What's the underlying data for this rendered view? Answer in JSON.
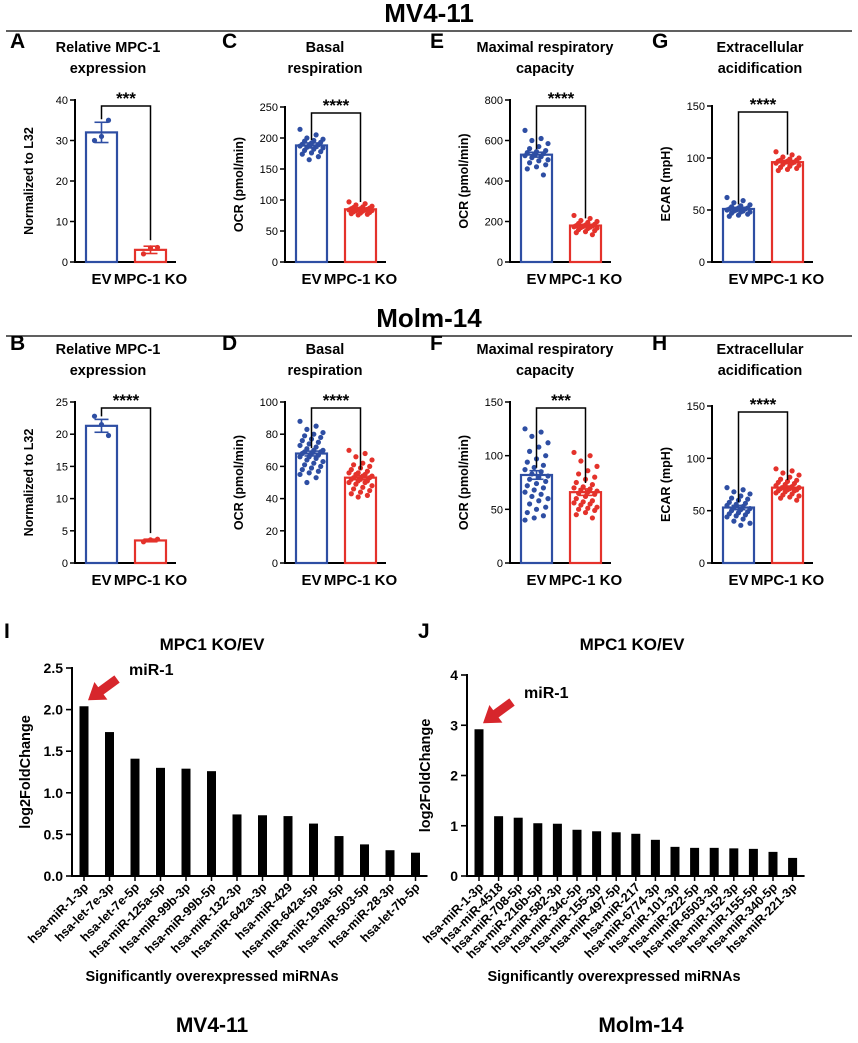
{
  "section_headers": [
    "MV4-11",
    "Molm-14"
  ],
  "bottom_labels": [
    "MV4-11",
    "Molm-14"
  ],
  "colors": {
    "ev": "#2e4ea3",
    "ko": "#e4322b",
    "black": "#000000",
    "arrow": "#d7262c"
  },
  "chart_data": [
    {
      "letter": "A",
      "type": "bar",
      "title": [
        "Relative MPC-1",
        "expression"
      ],
      "ylabel": "Normalized to L32",
      "ylim": [
        0,
        40
      ],
      "yticks": [
        0,
        10,
        20,
        30,
        40
      ],
      "categories": [
        "EV",
        "MPC-1 KO"
      ],
      "values": [
        32.0,
        3.0
      ],
      "errors": [
        2.5,
        0.9
      ],
      "points": [
        [
          30.0,
          31.0,
          35.0
        ],
        [
          2.0,
          3.5,
          3.6
        ]
      ],
      "significance": "***"
    },
    {
      "letter": "C",
      "type": "bar",
      "title": [
        "Basal",
        "respiration"
      ],
      "ylabel": "OCR (pmol/min)",
      "ylim": [
        0,
        250
      ],
      "yticks": [
        0,
        50,
        100,
        150,
        200,
        250
      ],
      "categories": [
        "EV",
        "MPC-1 KO"
      ],
      "values": [
        188,
        85
      ],
      "errors": [
        4,
        2
      ],
      "points": [
        [
          214,
          205,
          200,
          198,
          196,
          195,
          193,
          192,
          190,
          189,
          188,
          187,
          186,
          185,
          184,
          182,
          180,
          178,
          176,
          174,
          170,
          165
        ],
        [
          97,
          94,
          92,
          90,
          89,
          88,
          87,
          86,
          86,
          85,
          85,
          84,
          84,
          83,
          83,
          82,
          81,
          80,
          79,
          78,
          77,
          76
        ]
      ],
      "significance": "****"
    },
    {
      "letter": "E",
      "type": "bar",
      "title": [
        "Maximal respiratory",
        "capacity"
      ],
      "ylabel": "OCR (pmol/min)",
      "ylim": [
        0,
        800
      ],
      "yticks": [
        0,
        200,
        400,
        600,
        800
      ],
      "categories": [
        "EV",
        "MPC-1 KO"
      ],
      "values": [
        530,
        180
      ],
      "errors": [
        12,
        6
      ],
      "points": [
        [
          650,
          610,
          600,
          585,
          570,
          560,
          550,
          545,
          540,
          535,
          530,
          525,
          520,
          515,
          505,
          500,
          490,
          480,
          470,
          460,
          430
        ],
        [
          230,
          215,
          205,
          200,
          195,
          190,
          186,
          183,
          180,
          178,
          176,
          174,
          172,
          170,
          168,
          165,
          160,
          155,
          150,
          145,
          135
        ]
      ],
      "significance": "****"
    },
    {
      "letter": "G",
      "type": "bar",
      "title": [
        "Extracellular",
        "acidification"
      ],
      "ylabel": "ECAR (mpH)",
      "ylim": [
        0,
        150
      ],
      "yticks": [
        0,
        50,
        100,
        150
      ],
      "categories": [
        "EV",
        "MPC-1 KO"
      ],
      "values": [
        51,
        96
      ],
      "errors": [
        1.5,
        1.5
      ],
      "points": [
        [
          62,
          59,
          57,
          55,
          54,
          53,
          52,
          52,
          51,
          51,
          50,
          50,
          49,
          49,
          48,
          48,
          47,
          46,
          45,
          44
        ],
        [
          106,
          103,
          101,
          100,
          99,
          98,
          98,
          97,
          97,
          96,
          96,
          95,
          95,
          94,
          93,
          92,
          91,
          90,
          89,
          88
        ]
      ],
      "significance": "****"
    },
    {
      "letter": "B",
      "type": "bar",
      "title": [
        "Relative MPC-1",
        "expression"
      ],
      "ylabel": "Normalized to L32",
      "ylim": [
        0,
        25
      ],
      "yticks": [
        0,
        5,
        10,
        15,
        20,
        25
      ],
      "categories": [
        "EV",
        "MPC-1 KO"
      ],
      "values": [
        21.3,
        3.5
      ],
      "errors": [
        1.0,
        0.2
      ],
      "points": [
        [
          22.8,
          21.5,
          19.8
        ],
        [
          3.3,
          3.6,
          3.7
        ]
      ],
      "significance": "****"
    },
    {
      "letter": "D",
      "type": "bar",
      "title": [
        "Basal",
        "respiration"
      ],
      "ylabel": "OCR (pmol/min)",
      "ylim": [
        0,
        100
      ],
      "yticks": [
        0,
        20,
        40,
        60,
        80,
        100
      ],
      "categories": [
        "EV",
        "MPC-1 KO"
      ],
      "values": [
        68,
        53
      ],
      "errors": [
        1.5,
        1.2
      ],
      "points": [
        [
          88,
          85,
          83,
          81,
          80,
          79,
          78,
          77,
          76,
          75,
          74,
          73,
          72,
          71,
          70,
          70,
          69,
          69,
          68,
          68,
          67,
          66,
          66,
          65,
          64,
          63,
          62,
          61,
          60,
          59,
          58,
          57,
          56,
          55,
          53,
          50
        ],
        [
          70,
          68,
          66,
          64,
          62,
          61,
          60,
          59,
          58,
          57,
          56,
          56,
          55,
          55,
          54,
          54,
          53,
          53,
          52,
          52,
          51,
          51,
          50,
          50,
          49,
          48,
          47,
          46,
          45,
          44,
          43,
          42,
          41
        ]
      ],
      "significance": "****"
    },
    {
      "letter": "F",
      "type": "bar",
      "title": [
        "Maximal respiratory",
        "capacity"
      ],
      "ylabel": "OCR (pmol/min)",
      "ylim": [
        0,
        150
      ],
      "yticks": [
        0,
        50,
        100,
        150
      ],
      "categories": [
        "EV",
        "MPC-1 KO"
      ],
      "values": [
        82,
        66
      ],
      "errors": [
        4,
        3
      ],
      "points": [
        [
          125,
          122,
          118,
          112,
          108,
          104,
          100,
          97,
          94,
          91,
          89,
          87,
          85,
          83,
          81,
          80,
          78,
          76,
          74,
          72,
          70,
          68,
          66,
          64,
          62,
          60,
          58,
          55,
          52,
          50,
          47,
          44,
          42,
          40
        ],
        [
          103,
          100,
          95,
          90,
          86,
          83,
          80,
          78,
          75,
          73,
          71,
          70,
          69,
          68,
          67,
          66,
          65,
          64,
          62,
          60,
          58,
          57,
          56,
          55,
          54,
          52,
          51,
          50,
          49,
          47,
          45,
          42
        ]
      ],
      "significance": "***"
    },
    {
      "letter": "H",
      "type": "bar",
      "title": [
        "Extracellular",
        "acidification"
      ],
      "ylabel": "ECAR (mpH)",
      "ylim": [
        0,
        150
      ],
      "yticks": [
        0,
        50,
        100,
        150
      ],
      "categories": [
        "EV",
        "MPC-1 KO"
      ],
      "values": [
        53,
        72
      ],
      "errors": [
        2,
        1.5
      ],
      "points": [
        [
          72,
          70,
          68,
          66,
          64,
          62,
          61,
          60,
          58,
          57,
          56,
          55,
          54,
          53,
          52,
          51,
          50,
          49,
          48,
          47,
          46,
          45,
          44,
          42,
          40,
          38,
          36
        ],
        [
          90,
          88,
          86,
          84,
          82,
          80,
          79,
          78,
          77,
          76,
          75,
          74,
          73,
          72,
          72,
          71,
          71,
          70,
          70,
          69,
          69,
          68,
          67,
          66,
          65,
          64,
          63,
          62,
          60
        ]
      ],
      "significance": "****"
    },
    {
      "letter": "I",
      "type": "bar",
      "title": [
        "MPC1 KO/EV"
      ],
      "xlabel": "Significantly overexpressed miRNAs",
      "ylabel": "log2FoldChange",
      "ylim": [
        0,
        2.5
      ],
      "yticks": [
        "0.0",
        "0.5",
        "1.0",
        "1.5",
        "2.0",
        "2.5"
      ],
      "categories": [
        "hsa-miR-1-3p",
        "hsa-let-7e-3p",
        "hsa-let-7e-5p",
        "hsa-miR-125a-5p",
        "hsa-miR-99b-3p",
        "hsa-miR-99b-5p",
        "hsa-miR-132-3p",
        "hsa-miR-642a-3p",
        "hsa-miR-429",
        "hsa-miR-642a-5p",
        "hsa-miR-193a-5p",
        "hsa-miR-503-5p",
        "hsa-miR-28-3p",
        "hsa-let-7b-5p"
      ],
      "values": [
        2.04,
        1.73,
        1.41,
        1.3,
        1.29,
        1.26,
        0.74,
        0.73,
        0.72,
        0.63,
        0.48,
        0.38,
        0.31,
        0.28
      ],
      "annotation": "miR-1"
    },
    {
      "letter": "J",
      "type": "bar",
      "title": [
        "MPC1 KO/EV"
      ],
      "xlabel": "Significantly overexpressed miRNAs",
      "ylabel": "log2FoldChange",
      "ylim": [
        0,
        4
      ],
      "yticks": [
        "0",
        "1",
        "2",
        "3",
        "4"
      ],
      "categories": [
        "hsa-miR-1-3p",
        "hsa-miR-4518",
        "hsa-miR-708-5p",
        "hsa-miR-216b-5p",
        "hsa-miR-582-3p",
        "hsa-miR-34c-5p",
        "hsa-miR-155-3p",
        "hsa-miR-497-5p",
        "hsa-miR-217",
        "hsa-miR-6774-3p",
        "hsa-miR-101-3p",
        "hsa-miR-222-5p",
        "hsa-miR-6503-3p",
        "hsa-miR-152-3p",
        "hsa-miR-155-5p",
        "hsa-miR-340-5p",
        "hsa-miR-221-3p"
      ],
      "values": [
        2.92,
        1.19,
        1.16,
        1.05,
        1.04,
        0.92,
        0.89,
        0.87,
        0.84,
        0.72,
        0.58,
        0.56,
        0.56,
        0.55,
        0.54,
        0.48,
        0.36
      ],
      "annotation": "miR-1"
    }
  ]
}
